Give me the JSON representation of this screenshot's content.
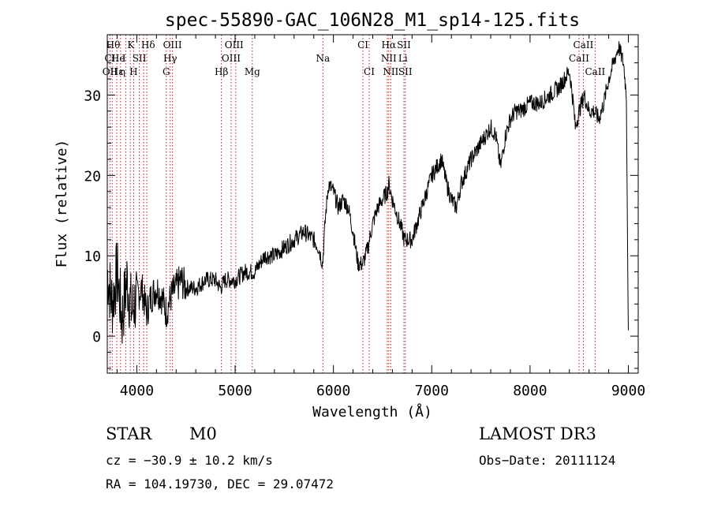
{
  "chart_data": {
    "type": "line",
    "title": "spec-55890-GAC_106N28_M1_sp14-125.fits",
    "xlabel": "Wavelength (Å)",
    "ylabel": "Flux (relative)",
    "xlim": [
      3700,
      9100
    ],
    "ylim": [
      -4.6,
      37.5
    ],
    "x_ticks": [
      4000,
      5000,
      6000,
      7000,
      8000,
      9000
    ],
    "y_ticks": [
      0,
      10,
      20,
      30
    ],
    "grid": false,
    "series": [
      {
        "name": "spectrum",
        "x": [
          3700,
          3750,
          3800,
          3850,
          3900,
          3950,
          4000,
          4050,
          4100,
          4150,
          4200,
          4250,
          4300,
          4350,
          4400,
          4450,
          4500,
          4600,
          4700,
          4800,
          4850,
          4900,
          5000,
          5100,
          5200,
          5300,
          5400,
          5500,
          5600,
          5700,
          5800,
          5850,
          5890,
          5920,
          5950,
          6000,
          6050,
          6100,
          6150,
          6200,
          6250,
          6300,
          6350,
          6400,
          6450,
          6500,
          6550,
          6563,
          6600,
          6650,
          6700,
          6720,
          6750,
          6800,
          6850,
          6900,
          6950,
          7000,
          7050,
          7100,
          7150,
          7200,
          7250,
          7300,
          7400,
          7500,
          7600,
          7650,
          7700,
          7750,
          7800,
          7850,
          7900,
          8000,
          8100,
          8200,
          8300,
          8400,
          8440,
          8460,
          8500,
          8550,
          8600,
          8650,
          8700,
          8750,
          8800,
          8850,
          8900,
          8950,
          8980,
          9000
        ],
        "flux": [
          8,
          4,
          8,
          2,
          7,
          3,
          5,
          6,
          3,
          5,
          6,
          5,
          3,
          5,
          6,
          7,
          6,
          6,
          7,
          7,
          6,
          7,
          7,
          8,
          8,
          10,
          10,
          11,
          12,
          13,
          12,
          11,
          9,
          15,
          19,
          18,
          16,
          17,
          16,
          13,
          9,
          9,
          11,
          14,
          16,
          17,
          18,
          19,
          17,
          15,
          13,
          12,
          12,
          12,
          14,
          16,
          18,
          20,
          21,
          22,
          19,
          17,
          16,
          19,
          22,
          24,
          26,
          25,
          21,
          25,
          27,
          28,
          28,
          29,
          29,
          30,
          31,
          33,
          29,
          26,
          28,
          30,
          28,
          28,
          27,
          29,
          32,
          34,
          36,
          34,
          30,
          -0.2
        ]
      }
    ],
    "line_groups": [
      {
        "wl": [
          3727,
          3750,
          3797,
          3835,
          3889,
          3934,
          3968,
          4026,
          4069,
          4102,
          4300,
          4340,
          4363,
          4861,
          4959,
          5007,
          5175,
          5893,
          6300,
          6364,
          6548,
          6563,
          6583,
          6717,
          6731,
          8498,
          8542,
          8662
        ]
      }
    ],
    "line_labels": [
      {
        "text": "Hθ",
        "wl": 3760,
        "row": 1
      },
      {
        "text": "K",
        "wl": 3940,
        "row": 1
      },
      {
        "text": "Hδ",
        "wl": 4115,
        "row": 1
      },
      {
        "text": "OIII",
        "wl": 4363,
        "row": 1
      },
      {
        "text": "OIII",
        "wl": 4990,
        "row": 1
      },
      {
        "text": "CI",
        "wl": 6300,
        "row": 1
      },
      {
        "text": "Hα",
        "wl": 6563,
        "row": 1
      },
      {
        "text": "SII",
        "wl": 6717,
        "row": 1
      },
      {
        "text": "CaII",
        "wl": 8542,
        "row": 1
      },
      {
        "text": "CI",
        "wl": 3727,
        "row": 2
      },
      {
        "text": "He",
        "wl": 3810,
        "row": 2
      },
      {
        "text": "I",
        "wl": 3870,
        "row": 2
      },
      {
        "text": "SII",
        "wl": 4026,
        "row": 2
      },
      {
        "text": "Hγ",
        "wl": 4340,
        "row": 2
      },
      {
        "text": "OIII",
        "wl": 4959,
        "row": 2
      },
      {
        "text": "Na",
        "wl": 5893,
        "row": 2
      },
      {
        "text": "NII",
        "wl": 6563,
        "row": 2
      },
      {
        "text": "Li",
        "wl": 6707,
        "row": 2
      },
      {
        "text": "CaII",
        "wl": 8498,
        "row": 2
      },
      {
        "text": "OII",
        "wl": 3727,
        "row": 3
      },
      {
        "text": "Hε",
        "wl": 3797,
        "row": 3
      },
      {
        "text": "η",
        "wl": 3855,
        "row": 3
      },
      {
        "text": "H",
        "wl": 3968,
        "row": 3
      },
      {
        "text": "G",
        "wl": 4300,
        "row": 3
      },
      {
        "text": "Hβ",
        "wl": 4861,
        "row": 3
      },
      {
        "text": "Mg",
        "wl": 5175,
        "row": 3
      },
      {
        "text": "CI",
        "wl": 6364,
        "row": 3
      },
      {
        "text": "NII",
        "wl": 6583,
        "row": 3
      },
      {
        "text": "SII",
        "wl": 6731,
        "row": 3
      },
      {
        "text": "CaII",
        "wl": 8662,
        "row": 3
      }
    ]
  },
  "info": {
    "class": "STAR",
    "subclass": "M0",
    "survey": "LAMOST DR3",
    "cz": "cz = −30.9 ± 10.2 km/s",
    "obs_date": "Obs−Date: 20111124",
    "coords": "RA = 104.19730, DEC =  29.07472"
  },
  "colors": {
    "axis": "#000000",
    "line_marker": "#b02020",
    "spectrum": "#000000"
  }
}
